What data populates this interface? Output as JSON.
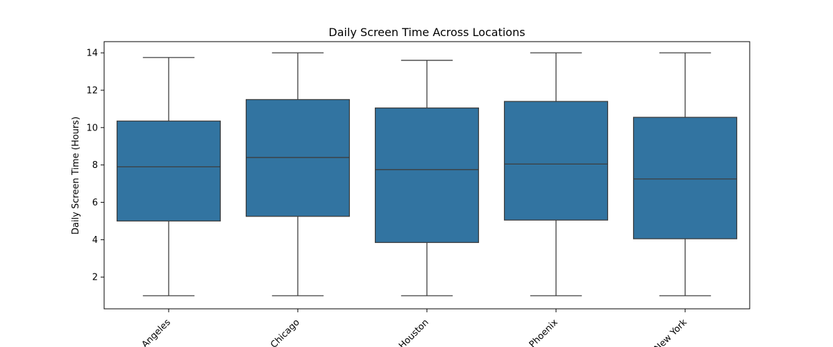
{
  "chart_data": {
    "type": "box",
    "title": "Daily Screen Time Across Locations",
    "xlabel": "",
    "ylabel": "Daily Screen Time (Hours)",
    "ylim": [
      0.3,
      14.6
    ],
    "yticks": [
      2,
      4,
      6,
      8,
      10,
      12,
      14
    ],
    "categories": [
      "Angeles",
      "Chicago",
      "Houston",
      "Phoenix",
      "New York"
    ],
    "boxes": [
      {
        "category": "Angeles",
        "min": 1.0,
        "q1": 5.0,
        "median": 7.9,
        "q3": 10.35,
        "max": 13.75
      },
      {
        "category": "Chicago",
        "min": 1.0,
        "q1": 5.25,
        "median": 8.4,
        "q3": 11.5,
        "max": 14.0
      },
      {
        "category": "Houston",
        "min": 1.0,
        "q1": 3.85,
        "median": 7.75,
        "q3": 11.05,
        "max": 13.6
      },
      {
        "category": "Phoenix",
        "min": 1.0,
        "q1": 5.05,
        "median": 8.05,
        "q3": 11.4,
        "max": 14.0
      },
      {
        "category": "New York",
        "min": 1.0,
        "q1": 4.05,
        "median": 7.25,
        "q3": 10.55,
        "max": 14.0
      }
    ],
    "colors": {
      "box_fill": "#3274a1",
      "line": "#3d3d3d",
      "axis": "#000000"
    },
    "grid": false,
    "legend": "none"
  }
}
